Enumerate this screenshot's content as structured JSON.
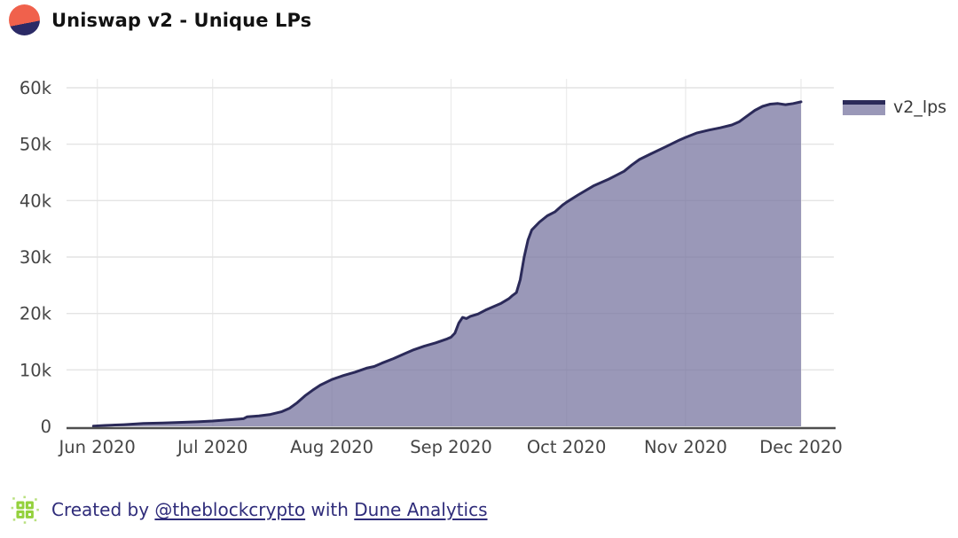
{
  "header": {
    "title": "Uniswap v2 - Unique LPs"
  },
  "legend": {
    "label": "v2_lps"
  },
  "footer": {
    "prefix": "Created by ",
    "author_link": "@theblockcrypto",
    "middle": " with ",
    "tool_link": "Dune Analytics"
  },
  "colors": {
    "line": "#2b2a59",
    "fill": "rgba(120,118,160,0.75)",
    "grid_h": "#e4e4e4",
    "grid_v": "#ededed",
    "axis": "#4f4f4f",
    "tick_text": "#454545",
    "title_text": "#121212",
    "footer_text": "#2f2c7a",
    "logo_orange": "#f0614c",
    "logo_navy": "#2b2a66",
    "dune_green": "#94d13d"
  },
  "chart_data": {
    "type": "area",
    "title": "Uniswap v2 - Unique LPs",
    "xlabel": "",
    "ylabel": "",
    "grid": true,
    "legend_position": "right",
    "x_range": [
      "2020-05-24",
      "2020-12-10"
    ],
    "y_range": [
      0,
      60000
    ],
    "y_ticks": [
      {
        "value": 0,
        "label": "0"
      },
      {
        "value": 10000,
        "label": "10k"
      },
      {
        "value": 20000,
        "label": "20k"
      },
      {
        "value": 30000,
        "label": "30k"
      },
      {
        "value": 40000,
        "label": "40k"
      },
      {
        "value": 50000,
        "label": "50k"
      },
      {
        "value": 60000,
        "label": "60k"
      }
    ],
    "x_ticks": [
      {
        "date": "2020-06-01",
        "label": "Jun 2020"
      },
      {
        "date": "2020-07-01",
        "label": "Jul 2020"
      },
      {
        "date": "2020-08-01",
        "label": "Aug 2020"
      },
      {
        "date": "2020-09-01",
        "label": "Sep 2020"
      },
      {
        "date": "2020-10-01",
        "label": "Oct 2020"
      },
      {
        "date": "2020-11-01",
        "label": "Nov 2020"
      },
      {
        "date": "2020-12-01",
        "label": "Dec 2020"
      }
    ],
    "series": [
      {
        "name": "v2_lps",
        "points": [
          [
            "2020-05-31",
            50
          ],
          [
            "2020-06-03",
            150
          ],
          [
            "2020-06-08",
            300
          ],
          [
            "2020-06-13",
            500
          ],
          [
            "2020-06-18",
            600
          ],
          [
            "2020-06-23",
            700
          ],
          [
            "2020-06-27",
            800
          ],
          [
            "2020-07-01",
            950
          ],
          [
            "2020-07-05",
            1150
          ],
          [
            "2020-07-08",
            1300
          ],
          [
            "2020-07-09",
            1350
          ],
          [
            "2020-07-10",
            1700
          ],
          [
            "2020-07-13",
            1850
          ],
          [
            "2020-07-16",
            2100
          ],
          [
            "2020-07-19",
            2600
          ],
          [
            "2020-07-21",
            3200
          ],
          [
            "2020-07-23",
            4200
          ],
          [
            "2020-07-25",
            5400
          ],
          [
            "2020-07-27",
            6400
          ],
          [
            "2020-07-29",
            7300
          ],
          [
            "2020-08-01",
            8300
          ],
          [
            "2020-08-04",
            9000
          ],
          [
            "2020-08-07",
            9600
          ],
          [
            "2020-08-10",
            10300
          ],
          [
            "2020-08-12",
            10600
          ],
          [
            "2020-08-14",
            11200
          ],
          [
            "2020-08-17",
            12000
          ],
          [
            "2020-08-20",
            12900
          ],
          [
            "2020-08-22",
            13500
          ],
          [
            "2020-08-25",
            14200
          ],
          [
            "2020-08-28",
            14800
          ],
          [
            "2020-08-31",
            15500
          ],
          [
            "2020-09-01",
            15800
          ],
          [
            "2020-09-02",
            16500
          ],
          [
            "2020-09-03",
            18300
          ],
          [
            "2020-09-04",
            19300
          ],
          [
            "2020-09-05",
            19100
          ],
          [
            "2020-09-06",
            19500
          ],
          [
            "2020-09-08",
            19900
          ],
          [
            "2020-09-10",
            20600
          ],
          [
            "2020-09-12",
            21200
          ],
          [
            "2020-09-14",
            21800
          ],
          [
            "2020-09-16",
            22600
          ],
          [
            "2020-09-17",
            23200
          ],
          [
            "2020-09-18",
            23700
          ],
          [
            "2020-09-19",
            26000
          ],
          [
            "2020-09-20",
            30000
          ],
          [
            "2020-09-21",
            33000
          ],
          [
            "2020-09-22",
            34800
          ],
          [
            "2020-09-24",
            36200
          ],
          [
            "2020-09-26",
            37300
          ],
          [
            "2020-09-28",
            38000
          ],
          [
            "2020-09-30",
            39200
          ],
          [
            "2020-10-01",
            39700
          ],
          [
            "2020-10-04",
            41000
          ],
          [
            "2020-10-08",
            42600
          ],
          [
            "2020-10-12",
            43800
          ],
          [
            "2020-10-14",
            44500
          ],
          [
            "2020-10-16",
            45200
          ],
          [
            "2020-10-18",
            46300
          ],
          [
            "2020-10-20",
            47300
          ],
          [
            "2020-10-23",
            48300
          ],
          [
            "2020-10-27",
            49600
          ],
          [
            "2020-10-30",
            50600
          ],
          [
            "2020-11-01",
            51200
          ],
          [
            "2020-11-04",
            52000
          ],
          [
            "2020-11-07",
            52500
          ],
          [
            "2020-11-10",
            52900
          ],
          [
            "2020-11-13",
            53400
          ],
          [
            "2020-11-15",
            54000
          ],
          [
            "2020-11-17",
            55000
          ],
          [
            "2020-11-19",
            56000
          ],
          [
            "2020-11-21",
            56700
          ],
          [
            "2020-11-23",
            57100
          ],
          [
            "2020-11-25",
            57200
          ],
          [
            "2020-11-27",
            57000
          ],
          [
            "2020-11-29",
            57200
          ],
          [
            "2020-12-01",
            57500
          ]
        ]
      }
    ]
  }
}
